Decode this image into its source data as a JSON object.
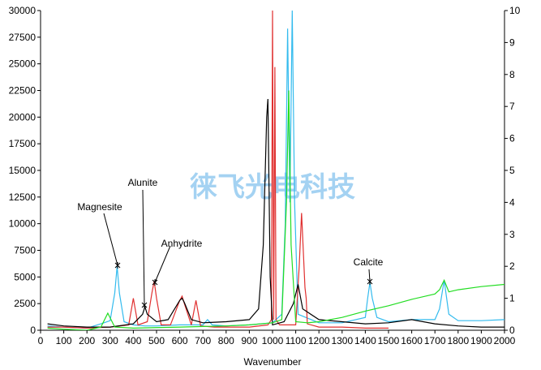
{
  "chart_data": {
    "type": "line",
    "x_label": "Wavenumber",
    "watermark": "徕飞光电科技",
    "annotations": [
      "Magnesite",
      "Alunite",
      "Anhydrite",
      "Calcite"
    ],
    "xlim": [
      0,
      2000
    ],
    "xticks": [
      0,
      100,
      200,
      300,
      400,
      500,
      600,
      700,
      800,
      900,
      1000,
      1100,
      1200,
      1300,
      1400,
      1500,
      1600,
      1700,
      1800,
      1900,
      2000
    ],
    "ylim": [
      0,
      30000
    ],
    "yticks": [
      0,
      2500,
      5000,
      7500,
      10000,
      12500,
      15000,
      17500,
      20000,
      22500,
      25000,
      27500,
      30000
    ],
    "y2lim": [
      0,
      10
    ],
    "y2ticks": [
      0,
      1,
      2,
      3,
      4,
      5,
      6,
      7,
      8,
      9,
      10
    ],
    "series": [
      {
        "color": "#33bbee",
        "x": [
          30,
          100,
          200,
          260,
          300,
          320,
          330,
          340,
          360,
          400,
          450,
          500,
          600,
          700,
          720,
          740,
          800,
          900,
          1000,
          1040,
          1055,
          1065,
          1075,
          1085,
          1095,
          1110,
          1200,
          1300,
          1400,
          1410,
          1420,
          1430,
          1450,
          1500,
          1600,
          1700,
          1720,
          1740,
          1760,
          1800,
          1900,
          2000
        ],
        "values": [
          400,
          300,
          200,
          600,
          900,
          3500,
          6000,
          3500,
          800,
          500,
          400,
          400,
          500,
          500,
          1000,
          500,
          400,
          500,
          700,
          1500,
          10000,
          28300,
          12000,
          30000,
          12000,
          1500,
          700,
          700,
          1200,
          3000,
          4500,
          3000,
          1200,
          800,
          1000,
          1000,
          2000,
          4700,
          1500,
          900,
          900,
          1000
        ]
      },
      {
        "color": "#e03030",
        "x": [
          30,
          100,
          200,
          300,
          380,
          400,
          420,
          460,
          480,
          490,
          500,
          520,
          560,
          600,
          610,
          620,
          650,
          670,
          690,
          750,
          900,
          980,
          995,
          1000,
          1005,
          1010,
          1015,
          1030,
          1100,
          1115,
          1125,
          1140,
          1145,
          1150,
          1200,
          1300,
          1400,
          1500
        ],
        "values": [
          300,
          300,
          200,
          300,
          500,
          3000,
          500,
          800,
          3500,
          4600,
          3000,
          500,
          500,
          2800,
          3200,
          2500,
          500,
          2800,
          400,
          300,
          300,
          500,
          1000,
          30000,
          1000,
          24700,
          1000,
          500,
          500,
          6000,
          11000,
          4000,
          3000,
          600,
          300,
          300,
          200,
          200
        ]
      },
      {
        "color": "#000000",
        "x": [
          30,
          100,
          200,
          300,
          400,
          440,
          450,
          460,
          500,
          550,
          600,
          610,
          620,
          650,
          700,
          800,
          900,
          940,
          960,
          975,
          980,
          990,
          1000,
          1050,
          1090,
          1110,
          1130,
          1200,
          1300,
          1400,
          1500,
          1600,
          1700,
          1800,
          1900,
          2000
        ],
        "values": [
          600,
          400,
          300,
          300,
          600,
          1500,
          2200,
          1500,
          800,
          1000,
          2800,
          3000,
          2600,
          1000,
          700,
          800,
          1000,
          2000,
          8000,
          20000,
          21700,
          5000,
          500,
          800,
          2500,
          4300,
          2000,
          1000,
          800,
          600,
          700,
          1000,
          600,
          400,
          300,
          300
        ]
      },
      {
        "color": "#22dd22",
        "x": [
          30,
          100,
          200,
          260,
          290,
          320,
          400,
          600,
          800,
          900,
          1000,
          1040,
          1060,
          1070,
          1080,
          1100,
          1150,
          1200,
          1300,
          1400,
          1500,
          1600,
          1700,
          1720,
          1740,
          1760,
          1800,
          1900,
          2000
        ],
        "values": [
          200,
          100,
          0,
          300,
          1600,
          300,
          200,
          300,
          400,
          500,
          700,
          1000,
          12000,
          22500,
          8000,
          800,
          700,
          800,
          1200,
          1800,
          2300,
          2900,
          3400,
          3800,
          4700,
          3600,
          3800,
          4100,
          4300
        ]
      }
    ]
  }
}
